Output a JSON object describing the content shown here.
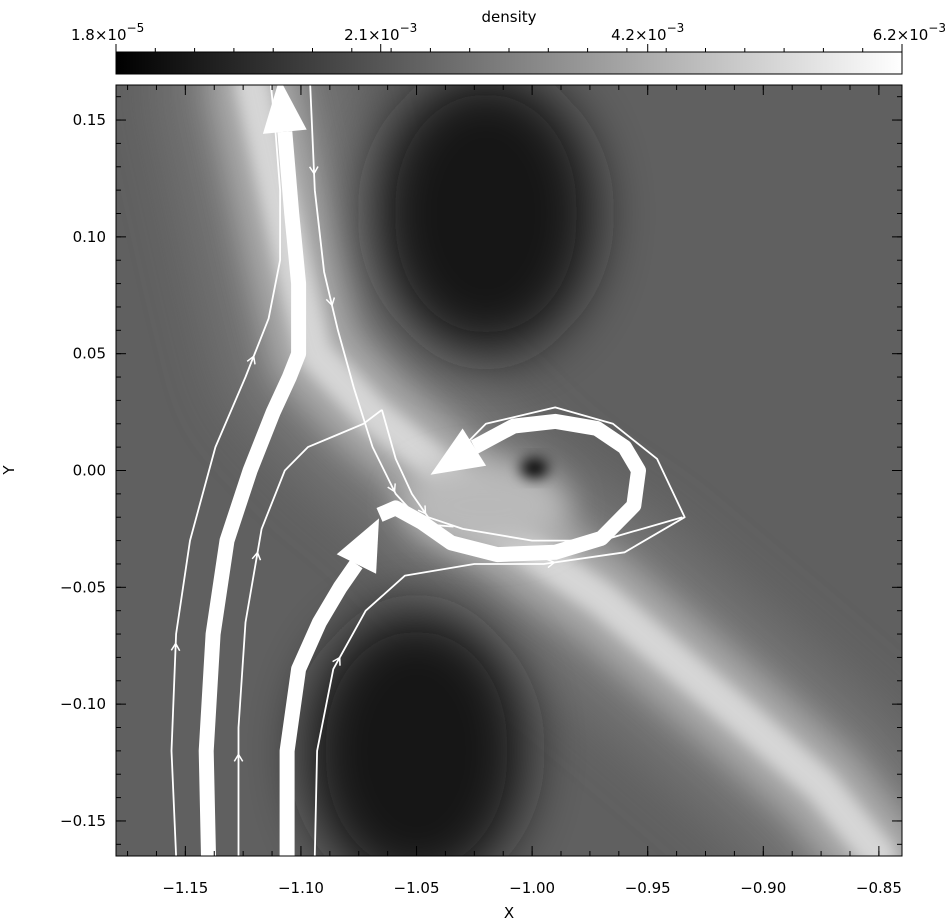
{
  "chart_data": {
    "type": "heatmap",
    "colorbar": {
      "title": "density",
      "range": [
        1.8e-05,
        0.0062
      ],
      "tick_labels": [
        {
          "value": 1.8e-05,
          "mantissa": "1.8",
          "exponent": "−5"
        },
        {
          "value": 0.0021,
          "mantissa": "2.1",
          "exponent": "−3"
        },
        {
          "value": 0.0042,
          "mantissa": "4.2",
          "exponent": "−3"
        },
        {
          "value": 0.0062,
          "mantissa": "6.2",
          "exponent": "−3"
        }
      ],
      "colormap": "grayscale (black to white)"
    },
    "xlabel": "X",
    "ylabel": "Y",
    "xlim": [
      -1.18,
      -0.84
    ],
    "ylim": [
      -0.165,
      0.165
    ],
    "x_ticks": [
      {
        "value": -1.15,
        "label": "−1.15"
      },
      {
        "value": -1.1,
        "label": "−1.10"
      },
      {
        "value": -1.05,
        "label": "−1.05"
      },
      {
        "value": -1.0,
        "label": "−1.00"
      },
      {
        "value": -0.95,
        "label": "−0.95"
      },
      {
        "value": -0.9,
        "label": "−0.90"
      },
      {
        "value": -0.85,
        "label": "−0.85"
      }
    ],
    "y_ticks": [
      {
        "value": 0.15,
        "label": "0.15"
      },
      {
        "value": 0.1,
        "label": "0.10"
      },
      {
        "value": 0.05,
        "label": "0.05"
      },
      {
        "value": 0.0,
        "label": "0.00"
      },
      {
        "value": -0.05,
        "label": "−0.05"
      },
      {
        "value": -0.1,
        "label": "−0.10"
      },
      {
        "value": -0.15,
        "label": "−0.15"
      }
    ],
    "density_features": [
      {
        "kind": "stream",
        "value": 0.0052,
        "points": [
          [
            -1.121,
            0.165
          ],
          [
            -1.104,
            0.09
          ],
          [
            -1.094,
            0.05
          ],
          [
            -1.07,
            0.025
          ],
          [
            -1.045,
            0.005
          ],
          [
            -1.02,
            -0.02
          ],
          [
            -1.0,
            -0.035
          ],
          [
            -0.97,
            -0.055
          ],
          [
            -0.94,
            -0.08
          ],
          [
            -0.91,
            -0.105
          ],
          [
            -0.875,
            -0.135
          ],
          [
            -0.85,
            -0.165
          ]
        ]
      },
      {
        "kind": "blob",
        "value": 0.0045,
        "x": -1.02,
        "y": -0.015
      },
      {
        "kind": "void",
        "value": 2e-05,
        "x": -0.999,
        "y": 0.001
      },
      {
        "kind": "void",
        "value": 0.0006,
        "x": -1.02,
        "y": 0.11
      },
      {
        "kind": "void",
        "value": 0.0006,
        "x": -1.05,
        "y": -0.12
      }
    ],
    "streamlines": [
      {
        "width": "thin",
        "points": [
          [
            -1.154,
            -0.165
          ],
          [
            -1.156,
            -0.12
          ],
          [
            -1.154,
            -0.07
          ],
          [
            -1.148,
            -0.03
          ],
          [
            -1.137,
            0.01
          ],
          [
            -1.124,
            0.04
          ],
          [
            -1.114,
            0.065
          ],
          [
            -1.109,
            0.09
          ],
          [
            -1.109,
            0.12
          ],
          [
            -1.111,
            0.145
          ],
          [
            -1.113,
            0.165
          ]
        ],
        "arrows": [
          0.27,
          0.65
        ]
      },
      {
        "width": "thin",
        "points": [
          [
            -1.127,
            -0.165
          ],
          [
            -1.127,
            -0.11
          ],
          [
            -1.124,
            -0.065
          ],
          [
            -1.117,
            -0.025
          ],
          [
            -1.107,
            0.0
          ],
          [
            -1.097,
            0.01
          ],
          [
            -1.085,
            0.015
          ],
          [
            -1.073,
            0.02
          ],
          [
            -1.065,
            0.026
          ]
        ],
        "arrows": [
          0.2,
          0.6
        ]
      },
      {
        "width": "thin",
        "points": [
          [
            -1.065,
            0.026
          ],
          [
            -1.059,
            0.005
          ],
          [
            -1.052,
            -0.01
          ],
          [
            -1.045,
            -0.02
          ],
          [
            -1.03,
            -0.025
          ],
          [
            -1.0,
            -0.03
          ],
          [
            -0.97,
            -0.03
          ],
          [
            -0.935,
            -0.02
          ]
        ],
        "arrows": [
          0.3
        ]
      },
      {
        "width": "thin",
        "points": [
          [
            -1.094,
            -0.165
          ],
          [
            -1.093,
            -0.12
          ],
          [
            -1.086,
            -0.085
          ],
          [
            -1.072,
            -0.06
          ],
          [
            -1.055,
            -0.045
          ],
          [
            -1.025,
            -0.04
          ],
          [
            -0.995,
            -0.04
          ],
          [
            -0.96,
            -0.035
          ],
          [
            -0.934,
            -0.02
          ],
          [
            -0.946,
            0.005
          ],
          [
            -0.965,
            0.02
          ],
          [
            -0.99,
            0.027
          ],
          [
            -1.02,
            0.02
          ],
          [
            -1.04,
            0.0
          ]
        ],
        "arrows": [
          0.22,
          0.5
        ]
      },
      {
        "width": "thin",
        "points": [
          [
            -1.096,
            0.165
          ],
          [
            -1.094,
            0.12
          ],
          [
            -1.09,
            0.085
          ],
          [
            -1.084,
            0.06
          ],
          [
            -1.077,
            0.035
          ],
          [
            -1.069,
            0.01
          ],
          [
            -1.059,
            -0.01
          ],
          [
            -1.047,
            -0.023
          ],
          [
            -1.034,
            -0.024
          ]
        ],
        "arrows": [
          0.18,
          0.45,
          0.85
        ]
      },
      {
        "width": "thick",
        "arrowhead": "start-only",
        "points": [
          [
            -1.14,
            -0.165
          ],
          [
            -1.141,
            -0.12
          ],
          [
            -1.138,
            -0.07
          ],
          [
            -1.132,
            -0.03
          ],
          [
            -1.122,
            0.0
          ],
          [
            -1.112,
            0.025
          ],
          [
            -1.105,
            0.04
          ],
          [
            -1.101,
            0.05
          ],
          [
            -1.101,
            0.08
          ],
          [
            -1.104,
            0.11
          ],
          [
            -1.107,
            0.145
          ]
        ],
        "head_at": [
          -1.108,
          0.155
        ]
      },
      {
        "width": "thick",
        "arrowhead": "end",
        "points": [
          [
            -1.106,
            -0.165
          ],
          [
            -1.106,
            -0.12
          ],
          [
            -1.101,
            -0.085
          ],
          [
            -1.092,
            -0.065
          ],
          [
            -1.083,
            -0.05
          ],
          [
            -1.076,
            -0.04
          ]
        ],
        "head_at": [
          -1.072,
          -0.032
        ]
      },
      {
        "width": "thick",
        "arrowhead": "end",
        "points": [
          [
            -1.066,
            -0.019
          ],
          [
            -1.059,
            -0.016
          ],
          [
            -1.048,
            -0.022
          ],
          [
            -1.035,
            -0.031
          ],
          [
            -1.015,
            -0.036
          ],
          [
            -0.99,
            -0.035
          ],
          [
            -0.97,
            -0.029
          ],
          [
            -0.956,
            -0.015
          ],
          [
            -0.954,
            0.0
          ],
          [
            -0.96,
            0.01
          ],
          [
            -0.972,
            0.018
          ],
          [
            -0.99,
            0.021
          ],
          [
            -1.008,
            0.019
          ],
          [
            -1.025,
            0.01
          ]
        ],
        "head_at": [
          -1.033,
          0.005
        ]
      }
    ]
  }
}
